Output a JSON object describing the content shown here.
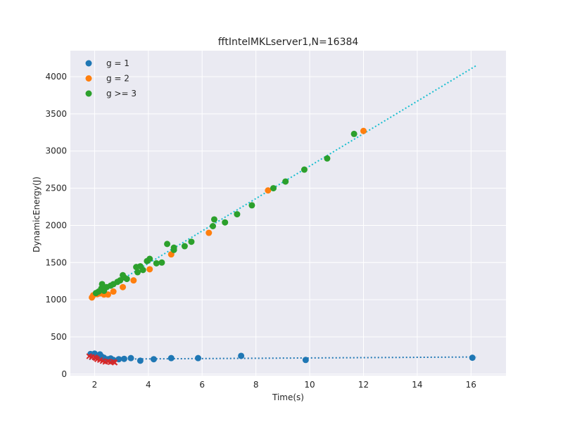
{
  "chart_data": {
    "type": "scatter",
    "title": "fftIntelMKLserver1,N=16384",
    "xlabel": "Time(s)",
    "ylabel": "DynamicEnergy(J)",
    "xlim": [
      1.1,
      17.3
    ],
    "ylim": [
      -20,
      4350
    ],
    "xticks": [
      2,
      4,
      6,
      8,
      10,
      12,
      14,
      16
    ],
    "yticks": [
      0,
      500,
      1000,
      1500,
      2000,
      2500,
      3000,
      3500,
      4000
    ],
    "grid": true,
    "legend_position": "top-left",
    "background": "#eaeaf2",
    "series": [
      {
        "name": "g = 1",
        "color": "#1f77b4",
        "points": [
          [
            1.85,
            270
          ],
          [
            2.0,
            275
          ],
          [
            2.05,
            255
          ],
          [
            2.1,
            245
          ],
          [
            2.2,
            265
          ],
          [
            2.25,
            240
          ],
          [
            2.35,
            220
          ],
          [
            2.5,
            200
          ],
          [
            2.6,
            210
          ],
          [
            2.7,
            190
          ],
          [
            2.9,
            200
          ],
          [
            3.1,
            205
          ],
          [
            3.35,
            215
          ],
          [
            3.7,
            180
          ],
          [
            4.2,
            200
          ],
          [
            4.85,
            215
          ],
          [
            5.85,
            215
          ],
          [
            7.45,
            245
          ],
          [
            9.85,
            190
          ],
          [
            16.05,
            220
          ]
        ]
      },
      {
        "name": "g = 2",
        "color": "#ff7f0e",
        "points": [
          [
            1.9,
            1030
          ],
          [
            1.95,
            1060
          ],
          [
            2.1,
            1075
          ],
          [
            2.2,
            1085
          ],
          [
            2.35,
            1070
          ],
          [
            2.5,
            1070
          ],
          [
            2.7,
            1110
          ],
          [
            3.05,
            1170
          ],
          [
            3.45,
            1260
          ],
          [
            4.05,
            1410
          ],
          [
            4.85,
            1610
          ],
          [
            6.25,
            1900
          ],
          [
            8.45,
            2470
          ],
          [
            12.0,
            3270
          ]
        ]
      },
      {
        "name": "g >= 3",
        "color": "#2ca02c",
        "points": [
          [
            2.05,
            1090
          ],
          [
            2.15,
            1110
          ],
          [
            2.25,
            1150
          ],
          [
            2.28,
            1210
          ],
          [
            2.35,
            1120
          ],
          [
            2.45,
            1170
          ],
          [
            2.6,
            1190
          ],
          [
            2.7,
            1210
          ],
          [
            2.85,
            1240
          ],
          [
            2.95,
            1260
          ],
          [
            3.05,
            1330
          ],
          [
            3.1,
            1300
          ],
          [
            3.2,
            1280
          ],
          [
            3.55,
            1440
          ],
          [
            3.6,
            1370
          ],
          [
            3.7,
            1450
          ],
          [
            3.8,
            1400
          ],
          [
            3.95,
            1520
          ],
          [
            4.05,
            1550
          ],
          [
            4.3,
            1490
          ],
          [
            4.5,
            1500
          ],
          [
            4.7,
            1750
          ],
          [
            4.95,
            1700
          ],
          [
            4.95,
            1670
          ],
          [
            5.35,
            1720
          ],
          [
            5.6,
            1780
          ],
          [
            6.4,
            1990
          ],
          [
            6.45,
            2080
          ],
          [
            6.85,
            2040
          ],
          [
            7.3,
            2150
          ],
          [
            7.85,
            2270
          ],
          [
            8.65,
            2500
          ],
          [
            9.1,
            2590
          ],
          [
            9.8,
            2750
          ],
          [
            10.65,
            2900
          ],
          [
            11.65,
            3230
          ]
        ]
      }
    ],
    "extra_points": {
      "color": "#d62728",
      "points": [
        [
          1.8,
          240
        ],
        [
          1.9,
          230
        ],
        [
          2.0,
          225
        ],
        [
          2.05,
          215
        ],
        [
          2.1,
          200
        ],
        [
          2.2,
          190
        ],
        [
          2.3,
          175
        ],
        [
          2.4,
          165
        ],
        [
          2.5,
          170
        ],
        [
          2.6,
          160
        ],
        [
          2.7,
          165
        ],
        [
          2.75,
          155
        ]
      ]
    },
    "fit_lines": [
      {
        "color": "#17becf",
        "from": [
          1.9,
          1030
        ],
        "to": [
          16.2,
          4150
        ]
      },
      {
        "color": "#1f77b4",
        "from": [
          1.8,
          200
        ],
        "to": [
          16.2,
          230
        ]
      }
    ]
  }
}
